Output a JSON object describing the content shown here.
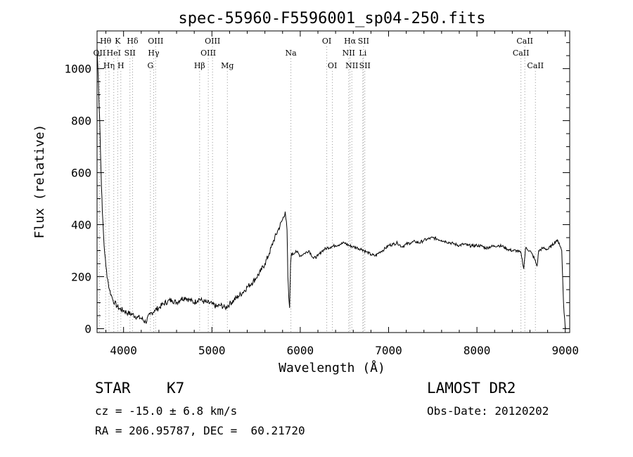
{
  "chart_data": {
    "type": "line",
    "title": "spec-55960-F5596001_sp04-250.fits",
    "xlabel": "Wavelength (Å)",
    "ylabel": "Flux (relative)",
    "xlim": [
      3700,
      9050
    ],
    "ylim": [
      -15,
      1145
    ],
    "x_ticks": [
      4000,
      5000,
      6000,
      7000,
      8000,
      9000
    ],
    "x_tick_labels": [
      "4000",
      "5000",
      "6000",
      "7000",
      "8000",
      "9000"
    ],
    "y_ticks": [
      0,
      200,
      400,
      600,
      800,
      1000
    ],
    "y_tick_labels": [
      "0",
      "200",
      "400",
      "600",
      "800",
      "1000"
    ],
    "grid": false,
    "series": [
      {
        "x": [
          3700,
          3715,
          3730,
          3745,
          3760,
          3780,
          3800,
          3820,
          3840,
          3860,
          3880,
          3900,
          3930,
          3960,
          4000,
          4050,
          4100,
          4150,
          4200,
          4250,
          4300,
          4350,
          4400,
          4450,
          4500,
          4550,
          4600,
          4650,
          4700,
          4750,
          4800,
          4850,
          4900,
          4950,
          5000,
          5050,
          5100,
          5150,
          5200,
          5250,
          5300,
          5350,
          5400,
          5450,
          5500,
          5550,
          5600,
          5650,
          5700,
          5750,
          5800,
          5830,
          5850,
          5860,
          5870,
          5880,
          5890,
          5900,
          5920,
          5950,
          6000,
          6050,
          6100,
          6150,
          6200,
          6250,
          6300,
          6350,
          6400,
          6450,
          6500,
          6550,
          6600,
          6650,
          6700,
          6750,
          6800,
          6850,
          6900,
          6950,
          7000,
          7050,
          7100,
          7150,
          7200,
          7250,
          7300,
          7350,
          7400,
          7450,
          7500,
          7550,
          7600,
          7650,
          7700,
          7750,
          7800,
          7850,
          7900,
          7950,
          8000,
          8050,
          8100,
          8150,
          8200,
          8250,
          8300,
          8350,
          8400,
          8450,
          8500,
          8530,
          8550,
          8570,
          8600,
          8650,
          8680,
          8700,
          8750,
          8800,
          8850,
          8900,
          8930,
          8960,
          8980,
          9000
        ],
        "y": [
          1080,
          950,
          800,
          600,
          450,
          320,
          240,
          190,
          150,
          130,
          110,
          100,
          85,
          75,
          70,
          60,
          55,
          45,
          40,
          25,
          55,
          70,
          80,
          95,
          105,
          110,
          100,
          115,
          120,
          110,
          100,
          115,
          105,
          100,
          95,
          85,
          90,
          80,
          95,
          110,
          125,
          140,
          160,
          175,
          195,
          220,
          250,
          290,
          340,
          380,
          420,
          450,
          380,
          200,
          120,
          80,
          250,
          290,
          285,
          300,
          280,
          290,
          300,
          270,
          280,
          300,
          310,
          315,
          320,
          325,
          330,
          320,
          315,
          310,
          305,
          295,
          285,
          280,
          295,
          305,
          320,
          325,
          330,
          315,
          325,
          330,
          335,
          330,
          340,
          345,
          350,
          345,
          340,
          335,
          330,
          325,
          320,
          325,
          320,
          318,
          320,
          318,
          310,
          315,
          318,
          320,
          315,
          305,
          300,
          300,
          290,
          230,
          310,
          305,
          300,
          270,
          240,
          300,
          310,
          305,
          320,
          340,
          330,
          300,
          100,
          0
        ]
      }
    ],
    "line_markers": [
      {
        "label": "OII",
        "x": 3727,
        "row": 2
      },
      {
        "label": "Hθ",
        "x": 3797,
        "row": 1
      },
      {
        "label": "K",
        "x": 3934,
        "row": 1
      },
      {
        "label": "Hη",
        "x": 3835,
        "row": 3
      },
      {
        "label": "HeI",
        "x": 3889,
        "row": 2
      },
      {
        "label": "SII",
        "x": 4072,
        "row": 2
      },
      {
        "label": "H",
        "x": 3969,
        "row": 3
      },
      {
        "label": "Hδ",
        "x": 4102,
        "row": 1
      },
      {
        "label": "OIII",
        "x": 4363,
        "row": 1
      },
      {
        "label": "Hγ",
        "x": 4341,
        "row": 2
      },
      {
        "label": "G",
        "x": 4304,
        "row": 3
      },
      {
        "label": "OIII",
        "x": 5007,
        "row": 1
      },
      {
        "label": "OIII",
        "x": 4959,
        "row": 2
      },
      {
        "label": "Hβ",
        "x": 4861,
        "row": 3
      },
      {
        "label": "Mg",
        "x": 5175,
        "row": 3
      },
      {
        "label": "Na",
        "x": 5894,
        "row": 2
      },
      {
        "label": "OI",
        "x": 6300,
        "row": 1
      },
      {
        "label": "OI",
        "x": 6364,
        "row": 3
      },
      {
        "label": "Hα",
        "x": 6563,
        "row": 1
      },
      {
        "label": "SII",
        "x": 6716,
        "row": 1
      },
      {
        "label": "NII",
        "x": 6548,
        "row": 2
      },
      {
        "label": "Li",
        "x": 6708,
        "row": 2
      },
      {
        "label": "NII",
        "x": 6584,
        "row": 3
      },
      {
        "label": "SII",
        "x": 6731,
        "row": 3
      },
      {
        "label": "CaII",
        "x": 8542,
        "row": 1
      },
      {
        "label": "CaII",
        "x": 8498,
        "row": 2
      },
      {
        "label": "CaII",
        "x": 8662,
        "row": 3
      }
    ]
  },
  "info": {
    "object_class": "STAR",
    "subclass": "K7",
    "cz": "cz = -15.0 ± 6.8 km/s",
    "coords": "RA = 206.95787, DEC =  60.21720",
    "survey": "LAMOST DR2",
    "obs_date": "Obs-Date: 20120202"
  }
}
